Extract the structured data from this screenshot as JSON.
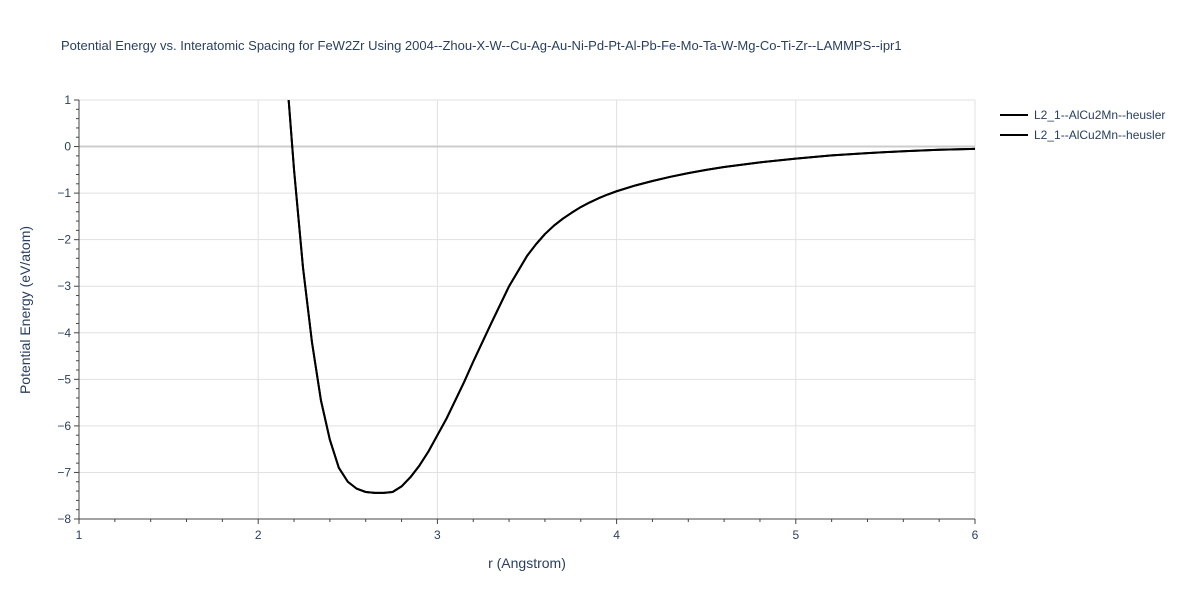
{
  "chart_data": {
    "type": "line",
    "title": "Potential Energy vs. Interatomic Spacing for FeW2Zr Using 2004--Zhou-X-W--Cu-Ag-Au-Ni-Pd-Pt-Al-Pb-Fe-Mo-Ta-W-Mg-Co-Ti-Zr--LAMMPS--ipr1",
    "xlabel": "r (Angstrom)",
    "ylabel": "Potential Energy (eV/atom)",
    "xlim": [
      1,
      6
    ],
    "ylim": [
      -8,
      1
    ],
    "xticks": [
      1,
      2,
      3,
      4,
      5,
      6
    ],
    "yticks": [
      1,
      0,
      -1,
      -2,
      -3,
      -4,
      -5,
      -6,
      -7,
      -8
    ],
    "xtick_labels": [
      "1",
      "2",
      "3",
      "4",
      "5",
      "6"
    ],
    "ytick_labels": [
      "1",
      "0",
      "−1",
      "−2",
      "−3",
      "−4",
      "−5",
      "−6",
      "−7",
      "−8"
    ],
    "grid": true,
    "legend_position": "top-right",
    "series": [
      {
        "name": "L2_1--AlCu2Mn--heusler",
        "color": "#000000",
        "x": [
          2.17,
          2.2,
          2.25,
          2.3,
          2.35,
          2.4,
          2.45,
          2.5,
          2.55,
          2.6,
          2.65,
          2.7,
          2.75,
          2.8,
          2.85,
          2.9,
          2.95,
          3.0,
          3.05,
          3.1,
          3.15,
          3.2,
          3.3,
          3.4,
          3.5,
          3.55,
          3.6,
          3.65,
          3.7,
          3.75,
          3.8,
          3.85,
          3.9,
          3.95,
          4.0,
          4.1,
          4.2,
          4.3,
          4.4,
          4.5,
          4.6,
          4.8,
          5.0,
          5.2,
          5.4,
          5.6,
          5.8,
          6.0
        ],
        "y": [
          1.0,
          -0.5,
          -2.6,
          -4.2,
          -5.45,
          -6.3,
          -6.9,
          -7.2,
          -7.35,
          -7.42,
          -7.44,
          -7.44,
          -7.42,
          -7.3,
          -7.1,
          -6.85,
          -6.55,
          -6.2,
          -5.85,
          -5.45,
          -5.05,
          -4.62,
          -3.8,
          -3.0,
          -2.35,
          -2.1,
          -1.88,
          -1.7,
          -1.55,
          -1.42,
          -1.3,
          -1.2,
          -1.11,
          -1.03,
          -0.96,
          -0.84,
          -0.74,
          -0.65,
          -0.57,
          -0.5,
          -0.44,
          -0.34,
          -0.26,
          -0.19,
          -0.14,
          -0.1,
          -0.07,
          -0.05
        ]
      },
      {
        "name": "L2_1--AlCu2Mn--heusler",
        "color": "#000000",
        "x": [
          2.17,
          2.2,
          2.25,
          2.3,
          2.35,
          2.4,
          2.45,
          2.5,
          2.55,
          2.6,
          2.65,
          2.7,
          2.75,
          2.8,
          2.85,
          2.9,
          2.95,
          3.0,
          3.05,
          3.1,
          3.15,
          3.2,
          3.3,
          3.4,
          3.5,
          3.55,
          3.6,
          3.65,
          3.7,
          3.75,
          3.8,
          3.85,
          3.9,
          3.95,
          4.0,
          4.1,
          4.2,
          4.3,
          4.4,
          4.5,
          4.6,
          4.8,
          5.0,
          5.2,
          5.4,
          5.6,
          5.8,
          6.0
        ],
        "y": [
          1.0,
          -0.5,
          -2.6,
          -4.2,
          -5.45,
          -6.3,
          -6.9,
          -7.2,
          -7.35,
          -7.42,
          -7.44,
          -7.44,
          -7.42,
          -7.3,
          -7.1,
          -6.85,
          -6.55,
          -6.2,
          -5.85,
          -5.45,
          -5.05,
          -4.62,
          -3.8,
          -3.0,
          -2.35,
          -2.1,
          -1.88,
          -1.7,
          -1.55,
          -1.42,
          -1.3,
          -1.2,
          -1.11,
          -1.03,
          -0.96,
          -0.84,
          -0.74,
          -0.65,
          -0.57,
          -0.5,
          -0.44,
          -0.34,
          -0.26,
          -0.19,
          -0.14,
          -0.1,
          -0.07,
          -0.05
        ]
      }
    ]
  }
}
